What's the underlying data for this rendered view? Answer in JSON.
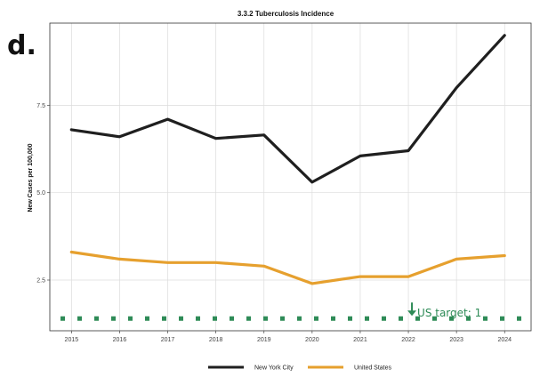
{
  "panel_letter": "d.",
  "chart_data": {
    "type": "line",
    "title": "3.3.2 Tuberculosis Incidence",
    "xlabel": "",
    "ylabel": "New Cases per 100,000",
    "x": [
      2015,
      2016,
      2017,
      2018,
      2019,
      2020,
      2021,
      2022,
      2023,
      2024
    ],
    "xlim": [
      2014.55,
      2024.55
    ],
    "ylim": [
      1.05,
      9.85
    ],
    "yticks": [
      2.5,
      5.0,
      7.5
    ],
    "ytick_labels": [
      "2.5",
      "5.0",
      "7.5"
    ],
    "xtick_labels": [
      "2015",
      "2016",
      "2017",
      "2018",
      "2019",
      "2020",
      "2021",
      "2022",
      "2023",
      "2024"
    ],
    "grid": true,
    "legend_position": "bottom",
    "series": [
      {
        "name": "New York City",
        "color": "#1f1f1f",
        "values": [
          6.8,
          6.6,
          7.1,
          6.55,
          6.65,
          5.3,
          6.05,
          6.2,
          8.0,
          9.5
        ]
      },
      {
        "name": "United States",
        "color": "#e6a02e",
        "values": [
          3.3,
          3.1,
          3.0,
          3.0,
          2.9,
          2.4,
          2.6,
          2.6,
          3.1,
          3.2
        ]
      }
    ],
    "target": {
      "label": "US target: 1",
      "value": 1.4,
      "x": 2022,
      "color": "#2e8b57"
    }
  }
}
